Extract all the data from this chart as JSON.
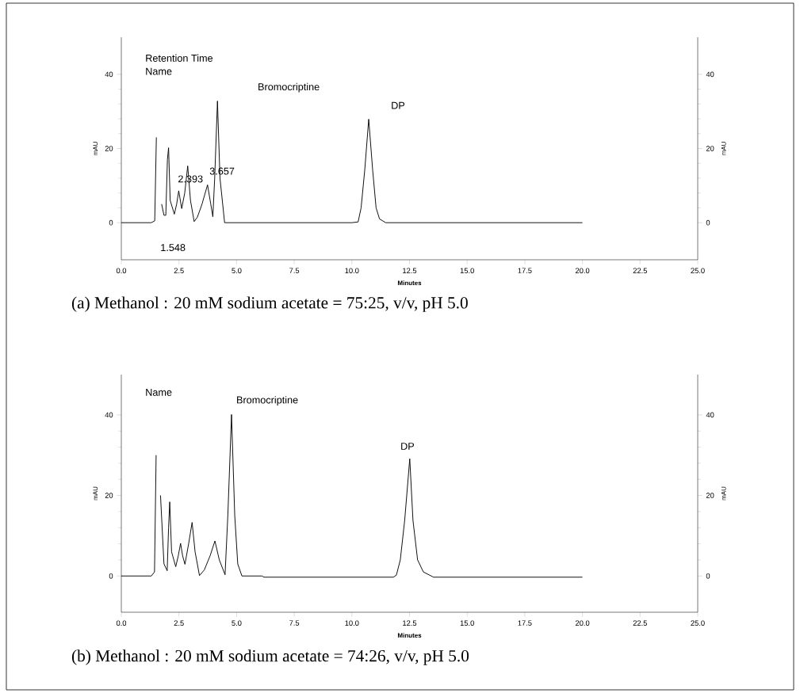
{
  "chart_data": [
    {
      "type": "line",
      "title": "(a) Methanol : 20 mM sodium acetate = 75:25, v/v, pH 5.0",
      "xlabel": "Minutes",
      "ylabel": "mAU",
      "y2label": "mAU",
      "xlim": [
        0,
        25
      ],
      "xticks": [
        {
          "value": 0,
          "label": "0.0"
        },
        2.5,
        {
          "value": 5,
          "label": "5.0"
        },
        7.5,
        {
          "value": 10,
          "label": "10.0"
        },
        12.5,
        {
          "value": 15,
          "label": "15.0"
        },
        17.5,
        {
          "value": 20,
          "label": "20.0"
        },
        22.5,
        {
          "value": 25,
          "label": "25.0"
        }
      ],
      "ylim": [
        -10,
        50
      ],
      "yticks": [
        0,
        20,
        40
      ],
      "y2lim": [
        -10,
        50
      ],
      "y2ticks": [
        0,
        20,
        40
      ],
      "grid": false,
      "series": [
        {
          "color": "#000000",
          "x": [
            0,
            1.3,
            1.45,
            1.52,
            1.58,
            1.68,
            1.75,
            1.85,
            1.93,
            2.0,
            2.05,
            2.12,
            2.3,
            2.4,
            2.49,
            2.56,
            2.62,
            2.75,
            2.88,
            3.0,
            3.16,
            3.3,
            3.5,
            3.74,
            3.88,
            3.97,
            4.05,
            4.17,
            4.28,
            4.48,
            10.0,
            10.27,
            10.4,
            10.56,
            10.73,
            10.9,
            11.05,
            11.2,
            11.47,
            20.0
          ],
          "values": [
            0,
            0,
            0.5,
            23,
            null,
            null,
            5,
            2,
            2,
            17,
            20.2,
            6,
            2.3,
            5,
            8.6,
            6,
            3.8,
            8,
            15.3,
            6,
            0.3,
            1.5,
            5,
            10.2,
            5,
            1.6,
            12,
            32.8,
            12,
            0,
            0,
            0.2,
            4,
            14.3,
            27.9,
            14.3,
            4,
            1,
            0,
            0
          ]
        }
      ],
      "annotations": [
        "Retention Time",
        "Name",
        "Bromocriptine",
        "DP",
        "2.393",
        "3.657",
        "1.548"
      ]
    },
    {
      "type": "line",
      "title": "(b) Methanol : 20 mM sodium acetate = 74:26, v/v, pH 5.0",
      "xlabel": "Minutes",
      "ylabel": "mAU",
      "y2label": "mAU",
      "xlim": [
        0,
        25
      ],
      "xticks": [
        {
          "value": 0,
          "label": "0.0"
        },
        2.5,
        {
          "value": 5,
          "label": "5.0"
        },
        7.5,
        {
          "value": 10,
          "label": "10.0"
        },
        12.5,
        {
          "value": 15,
          "label": "15.0"
        },
        17.5,
        {
          "value": 20,
          "label": "20.0"
        },
        22.5,
        {
          "value": 25,
          "label": "25.0"
        }
      ],
      "ylim": [
        -9,
        50
      ],
      "yticks": [
        0,
        20,
        40
      ],
      "y2lim": [
        -9,
        50
      ],
      "y2ticks": [
        0,
        20,
        40
      ],
      "grid": false,
      "series": [
        {
          "color": "#000000",
          "x": [
            0,
            1.3,
            1.44,
            1.51,
            1.56,
            1.63,
            1.7,
            1.85,
            1.99,
            2.05,
            2.1,
            2.18,
            2.36,
            2.47,
            2.57,
            2.66,
            2.76,
            2.92,
            3.07,
            3.2,
            3.39,
            3.6,
            3.85,
            4.06,
            4.25,
            4.5,
            4.62,
            4.78,
            4.92,
            5.05,
            5.23,
            6.1,
            6.19,
            11.8,
            11.93,
            12.1,
            12.29,
            12.51,
            12.65,
            12.85,
            13.1,
            13.54,
            20.0
          ],
          "values": [
            0,
            0,
            1,
            30,
            null,
            null,
            20,
            3,
            1.3,
            12,
            18.4,
            6,
            2.3,
            5,
            8.1,
            5,
            2.9,
            8,
            13.3,
            6,
            0.1,
            1.5,
            5,
            8.7,
            4,
            0.3,
            15,
            40.1,
            15,
            3,
            0,
            0,
            -0.3,
            -0.3,
            0.2,
            4,
            13.8,
            29.1,
            13.8,
            4,
            1,
            -0.3,
            -0.3
          ]
        }
      ],
      "annotations": [
        "Name",
        "Bromocriptine",
        "DP"
      ]
    }
  ]
}
